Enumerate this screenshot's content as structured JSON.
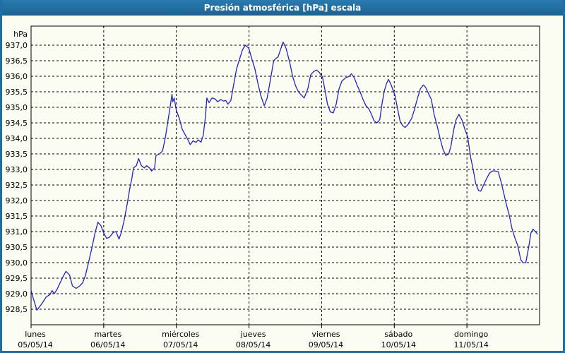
{
  "window": {
    "title": "Presión atmosférica [hPa] escala"
  },
  "colors": {
    "titlebar_blue": "#1e6fa5",
    "frame_blue": "#1e6fa5",
    "series_line": "#2424bc",
    "grid_black": "#000000",
    "background": "#fbfcf2",
    "title_text": "#ffffff"
  },
  "chart_data": {
    "type": "line",
    "title": "Presión atmosférica [hPa] escala",
    "unit_label": "hPa",
    "decimal_separator": ",",
    "grid": "dashed",
    "legend": "none",
    "y_axis": {
      "min_label": 928.5,
      "max_label": 937.0,
      "step": 0.5,
      "ticks": [
        {
          "v": 937.0,
          "label": "937,0"
        },
        {
          "v": 936.5,
          "label": "936,5"
        },
        {
          "v": 936.0,
          "label": "936,0"
        },
        {
          "v": 935.5,
          "label": "935,5"
        },
        {
          "v": 935.0,
          "label": "935,0"
        },
        {
          "v": 934.5,
          "label": "934,5"
        },
        {
          "v": 934.0,
          "label": "934,0"
        },
        {
          "v": 933.5,
          "label": "933,5"
        },
        {
          "v": 933.0,
          "label": "933,0"
        },
        {
          "v": 932.5,
          "label": "932,5"
        },
        {
          "v": 932.0,
          "label": "932,0"
        },
        {
          "v": 931.5,
          "label": "931,5"
        },
        {
          "v": 931.0,
          "label": "931,0"
        },
        {
          "v": 930.5,
          "label": "930,5"
        },
        {
          "v": 930.0,
          "label": "930,0"
        },
        {
          "v": 929.5,
          "label": "929,5"
        },
        {
          "v": 929.0,
          "label": "929,0"
        },
        {
          "v": 928.5,
          "label": "928,5"
        }
      ]
    },
    "x_axis": {
      "days": [
        {
          "day": "lunes",
          "date": "05/05/14"
        },
        {
          "day": "martes",
          "date": "06/05/14"
        },
        {
          "day": "miércoles",
          "date": "07/05/14"
        },
        {
          "day": "jueves",
          "date": "08/05/14"
        },
        {
          "day": "viernes",
          "date": "09/05/14"
        },
        {
          "day": "sábado",
          "date": "10/05/14"
        },
        {
          "day": "domingo",
          "date": "11/05/14"
        }
      ],
      "span_days": 7
    },
    "series": [
      {
        "name": "Presión atmosférica",
        "x_unit": "days_from_start",
        "y_unit": "hPa",
        "points": [
          [
            0.0,
            929.1
          ],
          [
            0.03,
            928.85
          ],
          [
            0.08,
            928.47
          ],
          [
            0.14,
            928.65
          ],
          [
            0.21,
            928.9
          ],
          [
            0.26,
            928.97
          ],
          [
            0.29,
            929.1
          ],
          [
            0.32,
            929.0
          ],
          [
            0.36,
            929.15
          ],
          [
            0.4,
            929.35
          ],
          [
            0.44,
            929.55
          ],
          [
            0.48,
            929.72
          ],
          [
            0.53,
            929.6
          ],
          [
            0.57,
            929.25
          ],
          [
            0.62,
            929.17
          ],
          [
            0.67,
            929.25
          ],
          [
            0.71,
            929.35
          ],
          [
            0.75,
            929.6
          ],
          [
            0.79,
            930.0
          ],
          [
            0.84,
            930.5
          ],
          [
            0.88,
            930.95
          ],
          [
            0.92,
            931.3
          ],
          [
            0.96,
            931.2
          ],
          [
            1.0,
            930.95
          ],
          [
            1.04,
            930.78
          ],
          [
            1.08,
            930.82
          ],
          [
            1.13,
            930.97
          ],
          [
            1.17,
            931.0
          ],
          [
            1.21,
            930.76
          ],
          [
            1.24,
            930.95
          ],
          [
            1.28,
            931.35
          ],
          [
            1.32,
            931.85
          ],
          [
            1.36,
            932.4
          ],
          [
            1.39,
            932.75
          ],
          [
            1.41,
            933.05
          ],
          [
            1.45,
            933.12
          ],
          [
            1.48,
            933.35
          ],
          [
            1.52,
            933.12
          ],
          [
            1.56,
            933.05
          ],
          [
            1.59,
            933.12
          ],
          [
            1.63,
            933.05
          ],
          [
            1.66,
            932.95
          ],
          [
            1.7,
            933.05
          ],
          [
            1.72,
            933.45
          ],
          [
            1.77,
            933.5
          ],
          [
            1.81,
            933.6
          ],
          [
            1.85,
            934.05
          ],
          [
            1.89,
            934.65
          ],
          [
            1.92,
            935.1
          ],
          [
            1.94,
            935.42
          ],
          [
            1.95,
            935.18
          ],
          [
            1.97,
            935.3
          ],
          [
            2.0,
            934.9
          ],
          [
            2.04,
            934.65
          ],
          [
            2.08,
            934.3
          ],
          [
            2.12,
            934.12
          ],
          [
            2.16,
            933.95
          ],
          [
            2.19,
            933.8
          ],
          [
            2.23,
            933.92
          ],
          [
            2.27,
            933.87
          ],
          [
            2.3,
            933.95
          ],
          [
            2.34,
            933.88
          ],
          [
            2.37,
            934.1
          ],
          [
            2.4,
            934.7
          ],
          [
            2.42,
            935.3
          ],
          [
            2.45,
            935.15
          ],
          [
            2.49,
            935.3
          ],
          [
            2.53,
            935.27
          ],
          [
            2.57,
            935.18
          ],
          [
            2.61,
            935.25
          ],
          [
            2.65,
            935.2
          ],
          [
            2.68,
            935.22
          ],
          [
            2.71,
            935.1
          ],
          [
            2.75,
            935.22
          ],
          [
            2.79,
            935.75
          ],
          [
            2.83,
            936.25
          ],
          [
            2.87,
            936.55
          ],
          [
            2.91,
            936.85
          ],
          [
            2.95,
            937.0
          ],
          [
            2.99,
            936.92
          ],
          [
            3.0,
            936.88
          ],
          [
            3.04,
            936.55
          ],
          [
            3.08,
            936.25
          ],
          [
            3.12,
            935.8
          ],
          [
            3.16,
            935.4
          ],
          [
            3.21,
            935.05
          ],
          [
            3.25,
            935.3
          ],
          [
            3.28,
            935.7
          ],
          [
            3.31,
            936.1
          ],
          [
            3.34,
            936.5
          ],
          [
            3.37,
            936.57
          ],
          [
            3.4,
            936.62
          ],
          [
            3.44,
            936.9
          ],
          [
            3.47,
            937.1
          ],
          [
            3.51,
            936.9
          ],
          [
            3.56,
            936.45
          ],
          [
            3.6,
            936.0
          ],
          [
            3.64,
            935.7
          ],
          [
            3.68,
            935.5
          ],
          [
            3.71,
            935.42
          ],
          [
            3.76,
            935.3
          ],
          [
            3.81,
            935.6
          ],
          [
            3.85,
            936.05
          ],
          [
            3.89,
            936.15
          ],
          [
            3.93,
            936.2
          ],
          [
            3.97,
            936.12
          ],
          [
            4.01,
            935.98
          ],
          [
            4.05,
            935.5
          ],
          [
            4.08,
            935.1
          ],
          [
            4.12,
            934.85
          ],
          [
            4.16,
            934.82
          ],
          [
            4.2,
            935.1
          ],
          [
            4.24,
            935.6
          ],
          [
            4.28,
            935.85
          ],
          [
            4.33,
            935.95
          ],
          [
            4.38,
            936.0
          ],
          [
            4.41,
            936.08
          ],
          [
            4.45,
            935.95
          ],
          [
            4.49,
            935.7
          ],
          [
            4.53,
            935.5
          ],
          [
            4.57,
            935.25
          ],
          [
            4.61,
            935.05
          ],
          [
            4.65,
            934.95
          ],
          [
            4.69,
            934.75
          ],
          [
            4.72,
            934.57
          ],
          [
            4.76,
            934.5
          ],
          [
            4.8,
            934.6
          ],
          [
            4.83,
            935.1
          ],
          [
            4.86,
            935.5
          ],
          [
            4.89,
            935.75
          ],
          [
            4.92,
            935.9
          ],
          [
            4.96,
            935.7
          ],
          [
            5.01,
            935.38
          ],
          [
            5.05,
            934.9
          ],
          [
            5.08,
            934.55
          ],
          [
            5.12,
            934.4
          ],
          [
            5.15,
            934.35
          ],
          [
            5.19,
            934.45
          ],
          [
            5.24,
            934.65
          ],
          [
            5.28,
            934.95
          ],
          [
            5.32,
            935.3
          ],
          [
            5.36,
            935.6
          ],
          [
            5.4,
            935.72
          ],
          [
            5.43,
            935.65
          ],
          [
            5.47,
            935.45
          ],
          [
            5.51,
            935.25
          ],
          [
            5.55,
            934.75
          ],
          [
            5.59,
            934.4
          ],
          [
            5.63,
            934.0
          ],
          [
            5.67,
            933.65
          ],
          [
            5.71,
            933.45
          ],
          [
            5.75,
            933.5
          ],
          [
            5.78,
            933.75
          ],
          [
            5.82,
            934.3
          ],
          [
            5.85,
            934.6
          ],
          [
            5.89,
            934.77
          ],
          [
            5.93,
            934.6
          ],
          [
            5.97,
            934.3
          ],
          [
            6.01,
            934.05
          ],
          [
            6.05,
            933.4
          ],
          [
            6.09,
            932.95
          ],
          [
            6.12,
            932.55
          ],
          [
            6.16,
            932.32
          ],
          [
            6.19,
            932.3
          ],
          [
            6.23,
            932.5
          ],
          [
            6.27,
            932.7
          ],
          [
            6.31,
            932.88
          ],
          [
            6.35,
            932.95
          ],
          [
            6.39,
            932.95
          ],
          [
            6.43,
            932.93
          ],
          [
            6.47,
            932.6
          ],
          [
            6.5,
            932.3
          ],
          [
            6.54,
            931.9
          ],
          [
            6.58,
            931.55
          ],
          [
            6.62,
            931.1
          ],
          [
            6.66,
            930.8
          ],
          [
            6.7,
            930.55
          ],
          [
            6.74,
            930.1
          ],
          [
            6.77,
            930.0
          ],
          [
            6.81,
            930.0
          ],
          [
            6.85,
            930.5
          ],
          [
            6.88,
            930.95
          ],
          [
            6.91,
            931.08
          ],
          [
            6.94,
            931.0
          ],
          [
            6.97,
            930.92
          ]
        ]
      }
    ]
  }
}
